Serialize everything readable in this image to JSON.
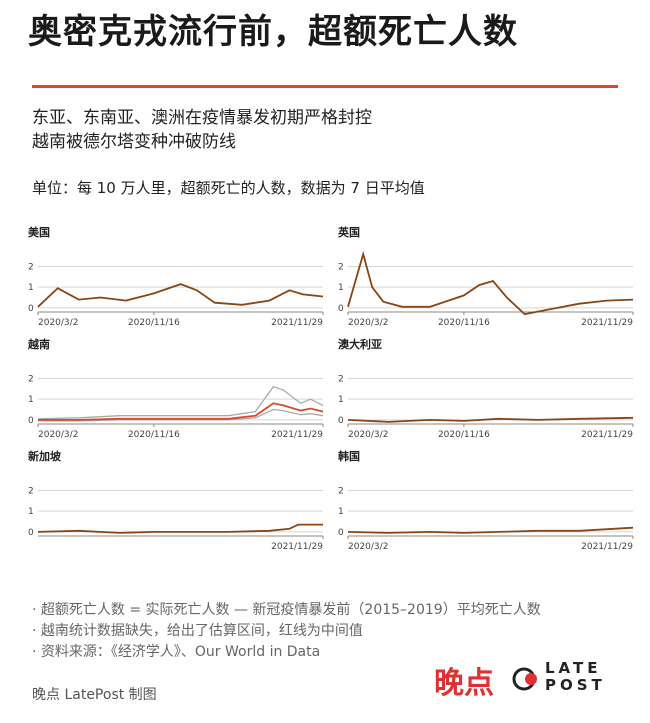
{
  "title": "奥密克戎流行前，超额死亡人数",
  "subtitle_lines": [
    "东亚、东南亚、澳洲在疫情暴发初期严格封控",
    "越南被德尔塔变种冲破防线"
  ],
  "unit_text": "单位：每 10 万人里，超额死亡的人数，数据为 7 日平均值",
  "notes": [
    "· 超额死亡人数 = 实际死亡人数 — 新冠疫情暴发前（2015–2019）平均死亡人数",
    "· 越南统计数据缺失，给出了估算区间，红线为中间值",
    "· 资料来源：《经济学人》、Our World in Data"
  ],
  "credit": "晚点 LatePost 制图",
  "brand": {
    "cn": "晚点",
    "en_line1": "LATE",
    "en_line2": "POST"
  },
  "colors": {
    "accent": "#d9482b",
    "series": "#8b4513",
    "band": "#aaaaaa",
    "brand_red": "#e03030"
  },
  "chart_data": [
    {
      "type": "line",
      "title": "美国",
      "x": [
        "2020-03-02",
        "2020-04-15",
        "2020-06-01",
        "2020-07-20",
        "2020-09-15",
        "2020-11-16",
        "2021-01-15",
        "2021-02-20",
        "2021-04-01",
        "2021-06-01",
        "2021-08-01",
        "2021-09-15",
        "2021-10-15",
        "2021-11-29"
      ],
      "y_ticks": [
        0,
        1,
        2
      ],
      "ylim": [
        -0.2,
        2.7
      ],
      "x_ticks": [
        "2020/3/2",
        "2020/11/16",
        "2021/11/29"
      ],
      "series": [
        {
          "values": [
            0.05,
            0.95,
            0.4,
            0.5,
            0.35,
            0.7,
            1.15,
            0.85,
            0.25,
            0.15,
            0.35,
            0.85,
            0.65,
            0.55
          ]
        }
      ]
    },
    {
      "type": "line",
      "title": "英国",
      "x": [
        "2020-03-02",
        "2020-04-05",
        "2020-04-25",
        "2020-05-20",
        "2020-07-01",
        "2020-09-01",
        "2020-11-16",
        "2020-12-20",
        "2021-01-20",
        "2021-02-20",
        "2021-04-01",
        "2021-06-01",
        "2021-08-01",
        "2021-10-01",
        "2021-11-29"
      ],
      "y_ticks": [
        0,
        1,
        2
      ],
      "ylim": [
        -0.2,
        2.7
      ],
      "x_ticks": [
        "2020/3/2",
        "2020/11/16",
        "2021/11/29"
      ],
      "series": [
        {
          "values": [
            0.05,
            2.6,
            1.0,
            0.3,
            0.05,
            0.05,
            0.6,
            1.1,
            1.3,
            0.5,
            -0.3,
            -0.05,
            0.2,
            0.35,
            0.4
          ]
        }
      ]
    },
    {
      "type": "line",
      "title": "越南",
      "x": [
        "2020-03-02",
        "2020-06-01",
        "2020-09-01",
        "2020-11-16",
        "2021-02-01",
        "2021-05-01",
        "2021-07-01",
        "2021-08-10",
        "2021-09-01",
        "2021-10-10",
        "2021-11-01",
        "2021-11-29"
      ],
      "y_ticks": [
        0,
        1,
        2
      ],
      "ylim": [
        -0.2,
        2.7
      ],
      "x_ticks": [
        "2020/3/2",
        "2020/11/16",
        "2021/11/29"
      ],
      "series": [
        {
          "values": [
            0.0,
            0.0,
            0.05,
            0.05,
            0.05,
            0.05,
            0.2,
            0.8,
            0.7,
            0.45,
            0.55,
            0.4
          ]
        },
        {
          "values": [
            -0.05,
            -0.05,
            0.0,
            0.0,
            0.0,
            0.0,
            0.1,
            0.5,
            0.45,
            0.25,
            0.3,
            0.2
          ]
        },
        {
          "values": [
            0.05,
            0.1,
            0.2,
            0.2,
            0.2,
            0.2,
            0.4,
            1.6,
            1.45,
            0.8,
            1.0,
            0.7
          ]
        }
      ]
    },
    {
      "type": "line",
      "title": "澳大利亚",
      "x": [
        "2020-03-02",
        "2020-06-01",
        "2020-09-01",
        "2020-11-16",
        "2021-02-01",
        "2021-05-01",
        "2021-08-01",
        "2021-11-29"
      ],
      "y_ticks": [
        0,
        1,
        2
      ],
      "ylim": [
        -0.2,
        2.7
      ],
      "x_ticks": [
        "2020/3/2",
        "2020/11/16",
        "2021/11/29"
      ],
      "series": [
        {
          "values": [
            0.0,
            -0.1,
            0.0,
            -0.05,
            0.05,
            0.0,
            0.05,
            0.1
          ]
        }
      ]
    },
    {
      "type": "line",
      "title": "新加坡",
      "x": [
        "2020-03-02",
        "2020-06-01",
        "2020-09-01",
        "2020-11-16",
        "2021-02-01",
        "2021-05-01",
        "2021-08-01",
        "2021-09-15",
        "2021-10-05",
        "2021-11-29"
      ],
      "y_ticks": [
        0,
        1,
        2
      ],
      "ylim": [
        -0.2,
        2.7
      ],
      "x_ticks": [
        "2021/11/29"
      ],
      "series": [
        {
          "values": [
            0.0,
            0.05,
            -0.05,
            0.0,
            0.0,
            0.0,
            0.05,
            0.15,
            0.35,
            0.35
          ]
        }
      ]
    },
    {
      "type": "line",
      "title": "韩国",
      "x": [
        "2020-03-02",
        "2020-06-01",
        "2020-09-01",
        "2020-11-16",
        "2021-02-01",
        "2021-05-01",
        "2021-08-01",
        "2021-11-29"
      ],
      "y_ticks": [
        0,
        1,
        2
      ],
      "ylim": [
        -0.2,
        2.7
      ],
      "x_ticks": [
        "2020/3/2",
        "2021/11/29"
      ],
      "series": [
        {
          "values": [
            0.0,
            -0.05,
            0.0,
            -0.05,
            0.0,
            0.05,
            0.05,
            0.2
          ]
        }
      ]
    }
  ]
}
